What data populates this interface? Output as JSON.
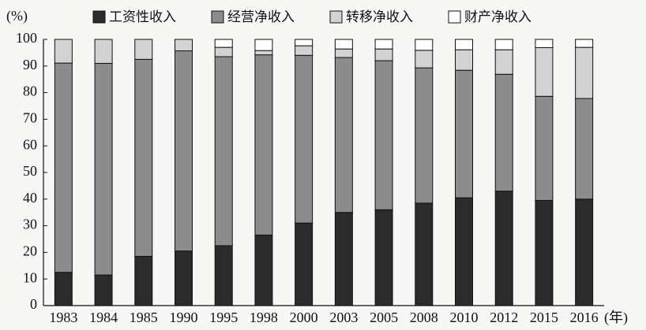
{
  "chart_data": {
    "type": "stacked_bar",
    "y_label": "(%)",
    "x_label": "(年)",
    "categories": [
      "1983",
      "1984",
      "1985",
      "1990",
      "1995",
      "1998",
      "2000",
      "2003",
      "2005",
      "2008",
      "2010",
      "2012",
      "2015",
      "2016"
    ],
    "series": [
      {
        "name": "工资性收入",
        "color": "#2b2b2b",
        "values": [
          12.5,
          11.5,
          18.5,
          20.5,
          22.5,
          26.5,
          31,
          35,
          36,
          38.5,
          40.5,
          43,
          39.5,
          40
        ]
      },
      {
        "name": "经营净收入",
        "color": "#8c8c8c",
        "values": [
          78.6,
          79.5,
          74,
          75.2,
          71,
          67.7,
          63,
          58.2,
          56,
          50.8,
          47.9,
          43.9,
          39.1,
          37.8
        ]
      },
      {
        "name": "转移净收入",
        "color": "#d2d2d2",
        "values": [
          8.9,
          9,
          7.5,
          4.3,
          3.5,
          1.6,
          3.6,
          3.2,
          4.4,
          6.6,
          7.7,
          9.2,
          18.3,
          19.2
        ]
      },
      {
        "name": "财产净收入",
        "color": "#ffffff",
        "values": [
          0,
          0,
          0,
          0,
          3,
          4.2,
          2.4,
          3.6,
          3.6,
          4.1,
          3.9,
          3.9,
          3.1,
          3
        ]
      }
    ],
    "ylim": [
      0,
      100
    ],
    "yticks": [
      0,
      10,
      20,
      30,
      40,
      50,
      60,
      70,
      80,
      90,
      100
    ],
    "legend": "top"
  }
}
